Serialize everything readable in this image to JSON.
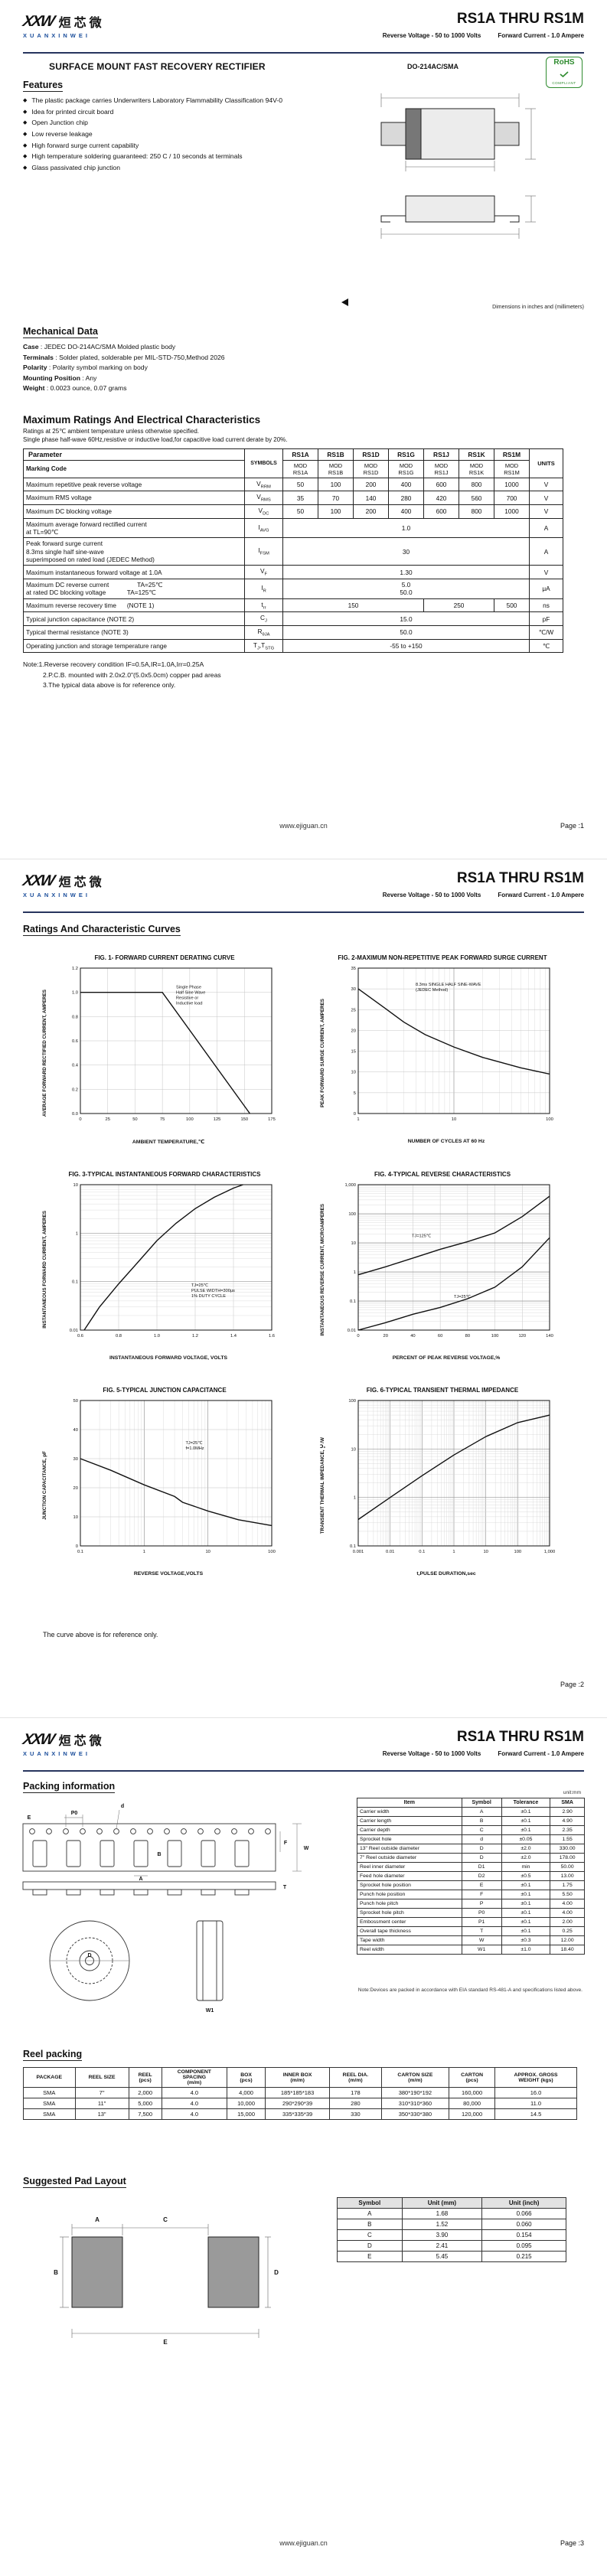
{
  "brand": {
    "logo_letters": "XXW",
    "logo_cn": "烜芯微",
    "logo_en": "XUANXINWEI",
    "accent": "#1b4e9b",
    "rohs_green": "#2e8b2e"
  },
  "header": {
    "title": "RS1A THRU RS1M",
    "subtitle_left": "Reverse Voltage - 50 to 1000 Volts",
    "subtitle_right": "Forward Current - 1.0 Ampere"
  },
  "page1": {
    "product_title": "SURFACE MOUNT FAST RECOVERY RECTIFIER",
    "package_label": "DO-214AC/SMA",
    "rohs": {
      "line1": "RoHS",
      "line2": "COMPLIANT"
    },
    "features": {
      "heading": "Features",
      "bullet": "◆",
      "items": [
        "The plastic package carries Underwriters Laboratory Flammability Classification 94V-0",
        "Idea for printed circuit board",
        "Open Junction chip",
        "Low reverse leakage",
        "High forward surge current capability",
        "High temperature soldering guaranteed: 250 C / 10 seconds at terminals",
        "Glass passivated chip junction"
      ]
    },
    "dim_note": "Dimensions in inches and (millimeters)",
    "mech": {
      "heading": "Mechanical Data",
      "rows": [
        {
          "label": "Case",
          "text": " : JEDEC DO-214AC/SMA Molded plastic body"
        },
        {
          "label": "Terminals",
          "text": " : Solder plated, solderable per MIL-STD-750,Method 2026"
        },
        {
          "label": "Polarity",
          "text": " : Polarity symbol marking on body"
        },
        {
          "label": "Mounting Position",
          "text": " : Any"
        },
        {
          "label": "Weight",
          "text": " : 0.0023 ounce, 0.07 grams"
        }
      ]
    },
    "ratings": {
      "heading": "Maximum Ratings And Electrical Characteristics",
      "cond1": "Ratings at 25℃ ambient temperature unless otherwise specified.",
      "cond2": "Single phase half-wave 60Hz,resistive or inductive load,for capacitive load current derate by 20%.",
      "col_parameter": "Parameter",
      "col_symbols": "SYMBOLS",
      "col_units": "UNITS",
      "marking_label": "Marking Code",
      "devices": [
        "RS1A",
        "RS1B",
        "RS1D",
        "RS1G",
        "RS1J",
        "RS1K",
        "RS1M"
      ],
      "marking": [
        "MOD\nRS1A",
        "MOD\nRS1B",
        "MOD\nRS1D",
        "MOD\nRS1G",
        "MOD\nRS1J",
        "MOD\nRS1K",
        "MOD\nRS1M"
      ],
      "rows": [
        {
          "param": "Maximum repetitive peak reverse voltage",
          "symbol": "V|RRM",
          "cells": [
            {
              "t": "50",
              "c": 1
            },
            {
              "t": "100",
              "c": 1
            },
            {
              "t": "200",
              "c": 1
            },
            {
              "t": "400",
              "c": 1
            },
            {
              "t": "600",
              "c": 1
            },
            {
              "t": "800",
              "c": 1
            },
            {
              "t": "1000",
              "c": 1
            }
          ],
          "unit": "V"
        },
        {
          "param": "Maximum RMS voltage",
          "symbol": "V|RMS",
          "cells": [
            {
              "t": "35",
              "c": 1
            },
            {
              "t": "70",
              "c": 1
            },
            {
              "t": "140",
              "c": 1
            },
            {
              "t": "280",
              "c": 1
            },
            {
              "t": "420",
              "c": 1
            },
            {
              "t": "560",
              "c": 1
            },
            {
              "t": "700",
              "c": 1
            }
          ],
          "unit": "V"
        },
        {
          "param": "Maximum DC blocking voltage",
          "symbol": "V|DC",
          "cells": [
            {
              "t": "50",
              "c": 1
            },
            {
              "t": "100",
              "c": 1
            },
            {
              "t": "200",
              "c": 1
            },
            {
              "t": "400",
              "c": 1
            },
            {
              "t": "600",
              "c": 1
            },
            {
              "t": "800",
              "c": 1
            },
            {
              "t": "1000",
              "c": 1
            }
          ],
          "unit": "V"
        },
        {
          "param": "Maximum average forward rectified current\nat TL=90℃",
          "symbol": "I|AVG",
          "cells": [
            {
              "t": "1.0",
              "c": 7
            }
          ],
          "unit": "A"
        },
        {
          "param": "Peak forward surge current\n8.3ms single half sine-wave\nsuperimposed on rated load (JEDEC Method)",
          "symbol": "I|FSM",
          "cells": [
            {
              "t": "30",
              "c": 7
            }
          ],
          "unit": "A"
        },
        {
          "param": "Maximum instantaneous forward voltage at 1.0A",
          "symbol": "V|F",
          "cells": [
            {
              "t": "1.30",
              "c": 7
            }
          ],
          "unit": "V"
        },
        {
          "param": "Maximum DC reverse current                TA=25℃\nat rated DC blocking voltage            TA=125℃",
          "symbol": "I|R",
          "cells": [
            {
              "t": "5.0\n50.0",
              "c": 7
            }
          ],
          "unit": "μA"
        },
        {
          "param": "Maximum reverse recovery time      (NOTE 1)",
          "symbol": "t|rr",
          "cells": [
            {
              "t": "150",
              "c": 4
            },
            {
              "t": "250",
              "c": 2
            },
            {
              "t": "500",
              "c": 1
            }
          ],
          "unit": "ns"
        },
        {
          "param": "Typical junction capacitance (NOTE 2)",
          "symbol": "C|J",
          "cells": [
            {
              "t": "15.0",
              "c": 7
            }
          ],
          "unit": "pF"
        },
        {
          "param": "Typical thermal resistance (NOTE 3)",
          "symbol": "R|θJA",
          "cells": [
            {
              "t": "50.0",
              "c": 7
            }
          ],
          "unit": "℃/W"
        },
        {
          "param": "Operating junction and storage temperature range",
          "symbol": "T|J|,T|STG",
          "cells": [
            {
              "t": "-55 to +150",
              "c": 7
            }
          ],
          "unit": "℃"
        }
      ]
    },
    "notes": [
      "Note:1.Reverse recovery condition IF=0.5A,IR=1.0A,Irr=0.25A",
      "2.P.C.B. mounted with 2.0x2.0\"(5.0x5.0cm) copper pad areas",
      "3.The typical data above is for reference only."
    ],
    "footer": {
      "site": "www.ejiguan.cn",
      "page": "Page :1"
    }
  },
  "page2": {
    "heading": "Ratings And Characteristic Curves",
    "footnote": "The curve above is for reference only.",
    "footer": {
      "page": "Page :2"
    }
  },
  "chart_data": [
    {
      "id": "fig1",
      "type": "line",
      "title": "FIG. 1- FORWARD CURRENT DERATING CURVE",
      "xlabel": "AMBIENT TEMPERATURE,℃",
      "ylabel": "AVERAGE FORWARD RECTIFIED CURRENT, AMPERES",
      "x": {
        "min": 0,
        "max": 175,
        "ticks": [
          0,
          25,
          50,
          75,
          100,
          125,
          150,
          175
        ]
      },
      "y": {
        "min": 0,
        "max": 1.2,
        "ticks": [
          0,
          0.2,
          0.4,
          0.6,
          0.8,
          1.0,
          1.2
        ],
        "dec": 1
      },
      "series": [
        {
          "name": "derating-curve",
          "points": [
            [
              0,
              1.0
            ],
            [
              75,
              1.0
            ],
            [
              155,
              0
            ]
          ]
        }
      ],
      "annotations": [
        {
          "text": "Single Phase\nHalf Sine Wave\nResistive or\nInductive load",
          "fx": 0.5,
          "fy": 0.14
        }
      ]
    },
    {
      "id": "fig2",
      "type": "line",
      "title": "FIG. 2-MAXIMUM NON-REPETITIVE PEAK FORWARD SURGE CURRENT",
      "xlabel": "NUMBER OF CYCLES AT 60 Hz",
      "ylabel": "PEAK FORWARD SURGE CURRENT, AMPERES",
      "x": {
        "min": 1,
        "max": 100,
        "log": true,
        "ticks": [
          1,
          10,
          100
        ]
      },
      "y": {
        "min": 0,
        "max": 35,
        "ticks": [
          0,
          5,
          10,
          15,
          20,
          25,
          30,
          35
        ]
      },
      "series": [
        {
          "name": "surge-current",
          "points": [
            [
              1,
              30
            ],
            [
              2,
              25
            ],
            [
              3,
              22
            ],
            [
              5,
              19
            ],
            [
              10,
              16
            ],
            [
              20,
              13.5
            ],
            [
              50,
              11
            ],
            [
              100,
              9.5
            ]
          ]
        }
      ],
      "annotations": [
        {
          "text": "8.3ms SINGLE HALF SINE-WAVE\n(JEDEC Method)",
          "fx": 0.3,
          "fy": 0.12
        }
      ]
    },
    {
      "id": "fig3",
      "type": "line",
      "title": "FIG. 3-TYPICAL INSTANTANEOUS FORWARD CHARACTERISTICS",
      "xlabel": "INSTANTANEOUS FORWARD VOLTAGE, VOLTS",
      "ylabel": "INSTANTANEOUS FORWARD CURRENT, AMPERES",
      "x": {
        "min": 0.6,
        "max": 1.6,
        "ticks": [
          0.6,
          0.8,
          1.0,
          1.2,
          1.4,
          1.6
        ],
        "dec": 1
      },
      "y": {
        "min": 0.01,
        "max": 10,
        "log": true,
        "ticks": [
          0.01,
          0.1,
          1,
          10
        ]
      },
      "series": [
        {
          "name": "vf-curve",
          "points": [
            [
              0.62,
              0.01
            ],
            [
              0.7,
              0.03
            ],
            [
              0.8,
              0.09
            ],
            [
              0.9,
              0.25
            ],
            [
              1.0,
              0.7
            ],
            [
              1.1,
              1.6
            ],
            [
              1.2,
              3.2
            ],
            [
              1.3,
              5.5
            ],
            [
              1.4,
              8.5
            ],
            [
              1.45,
              10
            ]
          ]
        }
      ],
      "annotations": [
        {
          "text": "TJ=25℃\nPULSE WIDTH=300μs\n1% DUTY CYCLE",
          "fx": 0.58,
          "fy": 0.7
        }
      ]
    },
    {
      "id": "fig4",
      "type": "line",
      "title": "FIG. 4-TYPICAL REVERSE CHARACTERISTICS",
      "xlabel": "PERCENT OF PEAK REVERSE VOLTAGE,%",
      "ylabel": "INSTANTANEOUS REVERSE CURRENT, MICROAMPERES",
      "x": {
        "min": 0,
        "max": 140,
        "ticks": [
          0,
          20,
          40,
          60,
          80,
          100,
          120,
          140
        ]
      },
      "y": {
        "min": 0.01,
        "max": 1000,
        "log": true,
        "ticks": [
          0.01,
          0.1,
          1,
          10,
          100,
          1000
        ]
      },
      "series": [
        {
          "name": "tj-125",
          "points": [
            [
              0,
              0.8
            ],
            [
              20,
              1.5
            ],
            [
              40,
              3
            ],
            [
              60,
              6
            ],
            [
              80,
              11
            ],
            [
              100,
              22
            ],
            [
              120,
              80
            ],
            [
              140,
              400
            ]
          ]
        },
        {
          "name": "tj-25",
          "points": [
            [
              0,
              0.01
            ],
            [
              20,
              0.018
            ],
            [
              40,
              0.035
            ],
            [
              60,
              0.06
            ],
            [
              80,
              0.12
            ],
            [
              100,
              0.3
            ],
            [
              120,
              1.5
            ],
            [
              140,
              15
            ]
          ]
        }
      ],
      "annotations": [
        {
          "text": "TJ=125℃",
          "fx": 0.28,
          "fy": 0.36
        },
        {
          "text": "TJ=25℃",
          "fx": 0.5,
          "fy": 0.78
        }
      ]
    },
    {
      "id": "fig5",
      "type": "line",
      "title": "FIG. 5-TYPICAL JUNCTION CAPACITANCE",
      "xlabel": "REVERSE VOLTAGE,VOLTS",
      "ylabel": "JUNCTION CAPACITANCE, pF",
      "x": {
        "min": 0.1,
        "max": 100,
        "log": true,
        "ticks": [
          0.1,
          1,
          10,
          100
        ]
      },
      "y": {
        "min": 0,
        "max": 50,
        "ticks": [
          0,
          10,
          20,
          30,
          40,
          50
        ]
      },
      "series": [
        {
          "name": "cj-curve",
          "points": [
            [
              0.1,
              30
            ],
            [
              0.3,
              26
            ],
            [
              1,
              21
            ],
            [
              3,
              17
            ],
            [
              4,
              15
            ],
            [
              10,
              12
            ],
            [
              30,
              9
            ],
            [
              100,
              7
            ]
          ]
        }
      ],
      "annotations": [
        {
          "text": "TJ=25℃\nf=1.0MHz",
          "fx": 0.55,
          "fy": 0.3
        }
      ]
    },
    {
      "id": "fig6",
      "type": "line",
      "title": "FIG. 6-TYPICAL TRANSIENT THERMAL IMPEDANCE",
      "xlabel": "t,PULSE DURATION,sec",
      "ylabel": "TRANSIENT THERMAL IMPEDANCE, ℃/W",
      "x": {
        "min": 0.001,
        "max": 1000,
        "log": true,
        "ticks": [
          0.001,
          0.01,
          0.1,
          1,
          10,
          100,
          1000
        ]
      },
      "y": {
        "min": 0.1,
        "max": 100,
        "log": true,
        "ticks": [
          0.1,
          1,
          10,
          100
        ]
      },
      "series": [
        {
          "name": "zth-curve",
          "points": [
            [
              0.001,
              0.35
            ],
            [
              0.01,
              1.0
            ],
            [
              0.1,
              2.8
            ],
            [
              1,
              7.5
            ],
            [
              10,
              18
            ],
            [
              100,
              35
            ],
            [
              1000,
              50
            ]
          ]
        }
      ],
      "annotations": []
    }
  ],
  "page3": {
    "heading": "Packing information",
    "unit_note": "unit:mm",
    "tape_labels": {
      "p0": "P0",
      "d": "d",
      "e": "E",
      "f": "F",
      "w": "W",
      "a": "A",
      "b": "B",
      "t": "T",
      "dd": "D",
      "w1": "W1"
    },
    "dims": {
      "headers": [
        "Item",
        "Symbol",
        "Tolerance",
        "SMA"
      ],
      "rows": [
        [
          "Carrier width",
          "A",
          "±0.1",
          "2.90"
        ],
        [
          "Carrier length",
          "B",
          "±0.1",
          "4.90"
        ],
        [
          "Carrier depth",
          "C",
          "±0.1",
          "2.35"
        ],
        [
          "Sprocket hole",
          "d",
          "±0.05",
          "1.55"
        ],
        [
          "13\" Reel outside diameter",
          "D",
          "±2.0",
          "330.00"
        ],
        [
          "7\" Reel outside diameter",
          "D",
          "±2.0",
          "178.00"
        ],
        [
          "Reel inner diameter",
          "D1",
          "min",
          "50.00"
        ],
        [
          "Feed hole diameter",
          "D2",
          "±0.5",
          "13.00"
        ],
        [
          "Sprocket hole position",
          "E",
          "±0.1",
          "1.75"
        ],
        [
          "Punch hole position",
          "F",
          "±0.1",
          "5.50"
        ],
        [
          "Punch hole pitch",
          "P",
          "±0.1",
          "4.00"
        ],
        [
          "Sprocket hole pitch",
          "P0",
          "±0.1",
          "4.00"
        ],
        [
          "Embossment center",
          "P1",
          "±0.1",
          "2.00"
        ],
        [
          "Overall tape thickness",
          "T",
          "±0.1",
          "0.25"
        ],
        [
          "Tape width",
          "W",
          "±0.3",
          "12.00"
        ],
        [
          "Reel width",
          "W1",
          "±1.0",
          "18.40"
        ]
      ]
    },
    "packing_note": "Note:Devices are packed in accordance with EIA standard RS-481-A and specifications listed above.",
    "reel": {
      "heading": "Reel packing",
      "headers": [
        "PACKAGE",
        "REEL SIZE",
        "REEL\n(pcs)",
        "COMPONENT\nSPACING\n(m/m)",
        "BOX\n(pcs)",
        "INNER BOX\n(m/m)",
        "REEL DIA.\n(m/m)",
        "CARTON SIZE\n(m/m)",
        "CARTON\n(pcs)",
        "APPROX. GROSS\nWEIGHT (kgs)"
      ],
      "rows": [
        [
          "SMA",
          "7\"",
          "2,000",
          "4.0",
          "4,000",
          "185*185*183",
          "178",
          "380*190*192",
          "160,000",
          "16.0"
        ],
        [
          "SMA",
          "11\"",
          "5,000",
          "4.0",
          "10,000",
          "290*290*39",
          "280",
          "310*310*360",
          "80,000",
          "11.0"
        ],
        [
          "SMA",
          "13\"",
          "7,500",
          "4.0",
          "15,000",
          "335*335*39",
          "330",
          "350*330*380",
          "120,000",
          "14.5"
        ]
      ]
    },
    "pad": {
      "heading": "Suggested Pad Layout",
      "headers": [
        "Symbol",
        "Unit (mm)",
        "Unit (inch)"
      ],
      "rows": [
        [
          "A",
          "1.68",
          "0.066"
        ],
        [
          "B",
          "1.52",
          "0.060"
        ],
        [
          "C",
          "3.90",
          "0.154"
        ],
        [
          "D",
          "2.41",
          "0.095"
        ],
        [
          "E",
          "5.45",
          "0.215"
        ]
      ]
    },
    "footer": {
      "site": "www.ejiguan.cn",
      "page": "Page :3"
    }
  }
}
